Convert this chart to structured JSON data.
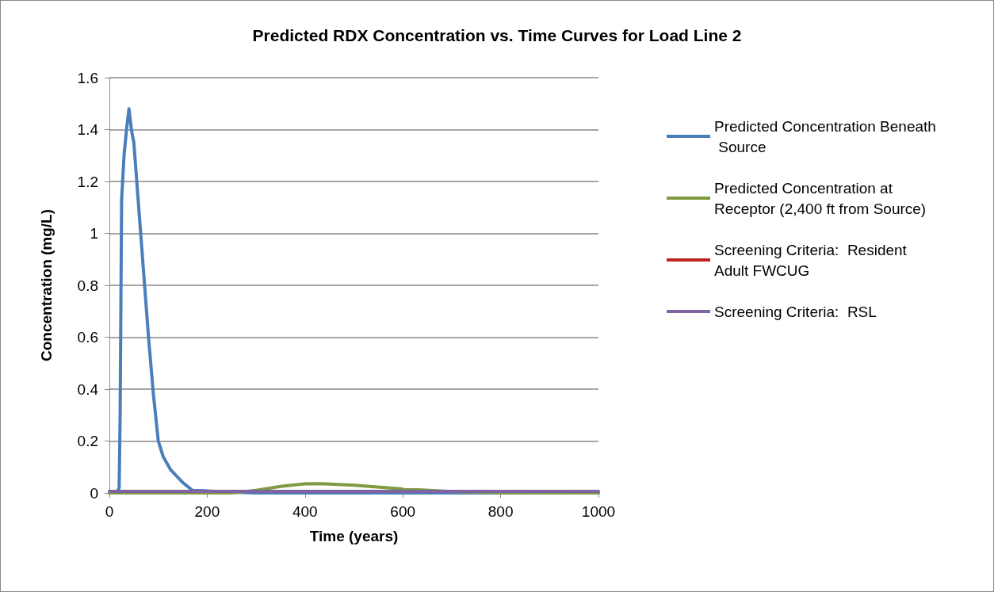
{
  "chart_data": {
    "type": "line",
    "title": "Predicted RDX Concentration vs. Time Curves for Load Line 2",
    "xlabel": "Time (years)",
    "ylabel": "Concentration (mg/L)",
    "xlim": [
      0,
      1000
    ],
    "xticks": [
      0,
      200,
      400,
      600,
      800,
      1000
    ],
    "ylim": [
      0,
      1.6
    ],
    "yticks": [
      0,
      0.2,
      0.4,
      0.6,
      0.8,
      1,
      1.2,
      1.4,
      1.6
    ],
    "grid": "y",
    "legend": "right",
    "marker": "none",
    "line_style": "solid",
    "series": [
      {
        "name": "Predicted Concentration Beneath Source",
        "color": "#4a7ebb",
        "x": [
          0,
          15,
          20,
          22,
          25,
          30,
          35,
          40,
          45,
          50,
          60,
          70,
          80,
          90,
          100,
          110,
          125,
          150,
          170,
          200,
          250,
          300,
          1000
        ],
        "values": [
          0,
          0,
          0.02,
          0.3,
          1.13,
          1.3,
          1.4,
          1.48,
          1.4,
          1.35,
          1.1,
          0.85,
          0.6,
          0.38,
          0.2,
          0.14,
          0.09,
          0.04,
          0.01,
          0.008,
          0.003,
          0,
          0
        ]
      },
      {
        "name": "Predicted Concentration at Receptor (2,400 ft from Source)",
        "color": "#7e9c3f",
        "x": [
          0,
          250,
          300,
          350,
          400,
          430,
          500,
          600,
          700,
          800,
          1000
        ],
        "values": [
          0,
          0,
          0.01,
          0.025,
          0.035,
          0.036,
          0.03,
          0.015,
          0.005,
          0.001,
          0
        ]
      },
      {
        "name": "Screening Criteria:  Resident Adult FWCUG",
        "color": "#c0211e"
      },
      {
        "name": "Screening Criteria:  RSL",
        "color": "#8064a2",
        "x": [
          0,
          1000
        ],
        "values": [
          0.006,
          0.006
        ]
      }
    ]
  }
}
